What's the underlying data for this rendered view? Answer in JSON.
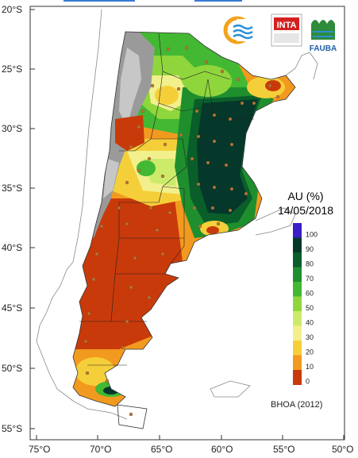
{
  "map": {
    "title": "AU (%)",
    "date": "14/05/2018",
    "credit": "BHOA (2012)",
    "lat_labels": [
      "20°S",
      "25°S",
      "30°S",
      "35°S",
      "40°S",
      "45°S",
      "50°S",
      "55°S"
    ],
    "lon_labels": [
      "75°O",
      "70°O",
      "65°O",
      "60°O",
      "55°O",
      "50°O"
    ]
  },
  "legend": {
    "labels": [
      "100",
      "90",
      "80",
      "70",
      "60",
      "50",
      "40",
      "30",
      "20",
      "10",
      "0"
    ],
    "colors": [
      "#3b1ec8",
      "#05382a",
      "#0a5e2a",
      "#1f8f2e",
      "#43b833",
      "#8fd63c",
      "#cdeb6b",
      "#f2f08c",
      "#f5cf3a",
      "#f29a1f",
      "#c93a0a"
    ]
  },
  "logos": {
    "inta": "INTA",
    "fauba": "FAUBA"
  },
  "colors": {
    "wet": "#05382a",
    "dry": "#c93a0a",
    "mountain": "#9a9a9a"
  }
}
